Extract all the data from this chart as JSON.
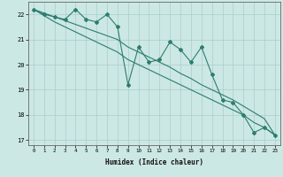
{
  "xlabel": "Humidex (Indice chaleur)",
  "ylabel": "",
  "x_values": [
    0,
    1,
    2,
    3,
    4,
    5,
    6,
    7,
    8,
    9,
    10,
    11,
    12,
    13,
    14,
    15,
    16,
    17,
    18,
    19,
    20,
    21,
    22,
    23
  ],
  "line1_y": [
    22.2,
    22.0,
    21.9,
    21.8,
    22.2,
    21.8,
    21.7,
    22.0,
    21.5,
    19.2,
    20.7,
    20.1,
    20.2,
    20.9,
    20.6,
    20.1,
    20.7,
    19.6,
    18.6,
    18.5,
    18.0,
    17.3,
    17.5,
    17.2
  ],
  "line2_y": [
    22.2,
    21.95,
    21.7,
    21.5,
    21.3,
    21.1,
    20.9,
    20.7,
    20.5,
    20.2,
    20.0,
    19.8,
    19.6,
    19.4,
    19.2,
    19.0,
    18.8,
    18.6,
    18.4,
    18.2,
    18.0,
    17.7,
    17.5,
    17.2
  ],
  "line3_y": [
    22.2,
    22.05,
    21.9,
    21.75,
    21.6,
    21.45,
    21.3,
    21.15,
    21.0,
    20.7,
    20.5,
    20.3,
    20.1,
    19.9,
    19.65,
    19.45,
    19.2,
    19.0,
    18.8,
    18.6,
    18.35,
    18.1,
    17.85,
    17.2
  ],
  "ylim": [
    16.8,
    22.5
  ],
  "xlim": [
    -0.5,
    23.5
  ],
  "yticks": [
    17,
    18,
    19,
    20,
    21,
    22
  ],
  "line_color": "#2d7d6e",
  "bg_color": "#cce8e4",
  "grid_color": "#aacccc",
  "axis_color": "#666666"
}
